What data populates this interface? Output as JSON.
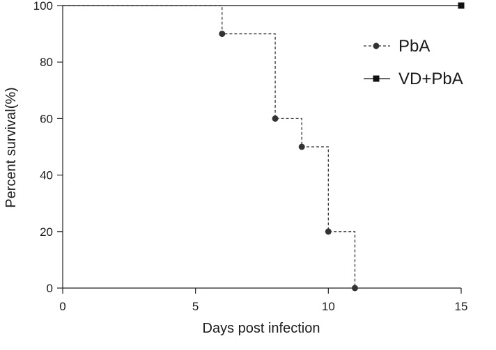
{
  "chart_data": {
    "type": "line",
    "step": true,
    "title": "",
    "xlabel": "Days post infection",
    "ylabel": "Percent survival(%)",
    "xlim": [
      0,
      15
    ],
    "ylim": [
      0,
      100
    ],
    "x_ticks": [
      0,
      5,
      10,
      15
    ],
    "y_ticks": [
      0,
      20,
      40,
      60,
      80,
      100
    ],
    "legend_position": "top-right",
    "series": [
      {
        "name": "PbA",
        "line_style": "dashed",
        "marker": "circle",
        "color": "#333333",
        "x": [
          0,
          6,
          8,
          9,
          10,
          11
        ],
        "values": [
          100,
          90,
          60,
          50,
          20,
          0
        ],
        "marked": [
          false,
          true,
          true,
          true,
          true,
          true
        ]
      },
      {
        "name": "VD+PbA",
        "line_style": "solid",
        "marker": "square",
        "color": "#111111",
        "x": [
          0,
          15
        ],
        "values": [
          100,
          100
        ],
        "marked": [
          false,
          true
        ]
      }
    ]
  }
}
